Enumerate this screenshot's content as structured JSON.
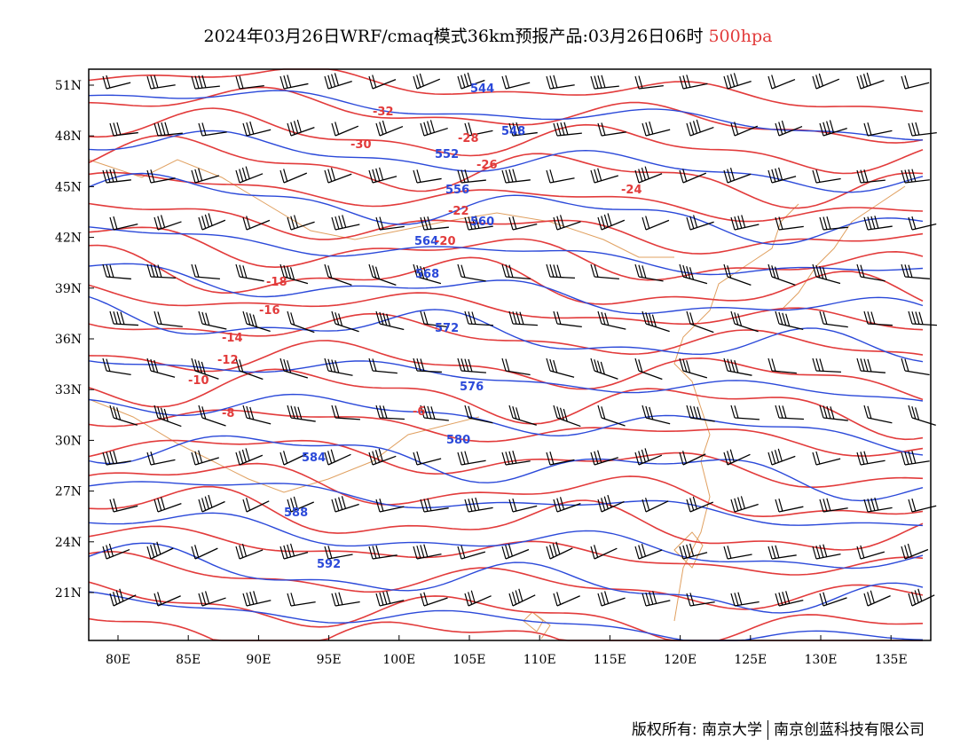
{
  "title": {
    "main": "2024年03月26日WRF/cmaq模式36km预报产品:03月26日06时",
    "level": "500hpa"
  },
  "colors": {
    "height_contour": "#2b49d9",
    "temperature_contour": "#e23b3b",
    "coastline_border": "#e0a060",
    "wind_barb": "#000000",
    "level_text": "#e23b3b"
  },
  "axes": {
    "x_ticks": [
      "80E",
      "85E",
      "90E",
      "95E",
      "100E",
      "105E",
      "110E",
      "115E",
      "120E",
      "125E",
      "130E",
      "135E"
    ],
    "y_ticks": [
      "51N",
      "48N",
      "45N",
      "42N",
      "39N",
      "36N",
      "33N",
      "30N",
      "27N",
      "24N",
      "21N"
    ]
  },
  "contours": {
    "geopotential_height_labels": [
      "544",
      "548",
      "552",
      "556",
      "560",
      "564",
      "568",
      "572",
      "576",
      "580",
      "584",
      "588",
      "592"
    ],
    "temperature_labels": [
      "-32",
      "-30",
      "-28",
      "-26",
      "-24",
      "-22",
      "-20",
      "-18",
      "-16",
      "-14",
      "-12",
      "-10",
      "-8",
      "-6"
    ]
  },
  "footer": {
    "copyright": "版权所有: 南京大学",
    "company": "南京创蓝科技有限公司"
  }
}
